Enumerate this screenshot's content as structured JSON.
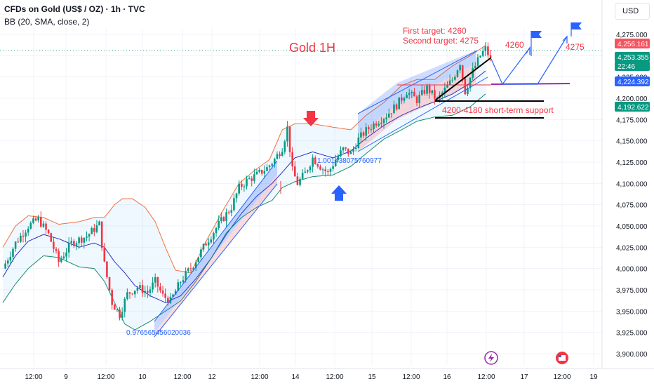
{
  "header": {
    "title": "CFDs on Gold (US$ / OZ) · 1h · TVC",
    "indicator": "BB (20, SMA, close, 2)",
    "currency": "USD"
  },
  "chart_data": {
    "type": "candlestick",
    "title": "Gold 1H",
    "ylim": [
      3890,
      4290
    ],
    "y_ticks": [
      3900,
      3925,
      3950,
      3975,
      4000,
      4025,
      4050,
      4075,
      4100,
      4125,
      4150,
      4175,
      4200,
      4225,
      4250,
      4275
    ],
    "y_tick_labels": [
      "3,900.000",
      "3,925.000",
      "3,950.000",
      "3,975.000",
      "4,000.000",
      "4,025.000",
      "4,050.000",
      "4,075.000",
      "4,100.000",
      "4,125.000",
      "4,150.000",
      "4,175.000",
      "4,200.000",
      "4,225.000",
      "4,250.000",
      "4,275.000"
    ],
    "x_tick_labels": [
      "12:00",
      "9",
      "12:00",
      "10",
      "12:00",
      "12",
      "12:00",
      "14",
      "12:00",
      "15",
      "12:00",
      "16",
      "12:00",
      "17",
      "12:00",
      "19"
    ],
    "price_badges": [
      {
        "value": "4,256.161",
        "color": "#f7525f"
      },
      {
        "value": "4,253.355",
        "color": "#089981"
      },
      {
        "value": "22:46",
        "color": "#089981"
      },
      {
        "value": "4,224.392",
        "color": "#2962ff"
      },
      {
        "value": "4,192.622",
        "color": "#089981"
      }
    ],
    "last_price_line": 4256,
    "support_line": 4224,
    "support_zone": [
      4200,
      4180
    ],
    "annotations": {
      "targets_line1": "First target: 4260",
      "targets_line2": "Second target: 4275",
      "target1": "4260",
      "target2": "4275",
      "support_label": "4200-4180 short-term support",
      "fib_low": "0.976565456020036",
      "fib_mid": "1.001438075760977"
    },
    "close_path": [
      [
        0,
        4000
      ],
      [
        5,
        4030
      ],
      [
        10,
        4050
      ],
      [
        14,
        4058
      ],
      [
        18,
        4040
      ],
      [
        22,
        4008
      ],
      [
        27,
        4030
      ],
      [
        33,
        4038
      ],
      [
        38,
        4052
      ],
      [
        40,
        4005
      ],
      [
        43,
        3960
      ],
      [
        46,
        3946
      ],
      [
        49,
        3970
      ],
      [
        53,
        3978
      ],
      [
        57,
        3972
      ],
      [
        60,
        3985
      ],
      [
        63,
        3968
      ],
      [
        66,
        3962
      ],
      [
        70,
        3985
      ],
      [
        75,
        4005
      ],
      [
        80,
        4030
      ],
      [
        85,
        4052
      ],
      [
        90,
        4072
      ],
      [
        93,
        4095
      ],
      [
        96,
        4103
      ],
      [
        100,
        4110
      ],
      [
        104,
        4118
      ],
      [
        107,
        4128
      ],
      [
        110,
        4142
      ],
      [
        112,
        4165
      ],
      [
        114,
        4115
      ],
      [
        116,
        4100
      ],
      [
        119,
        4112
      ],
      [
        122,
        4130
      ],
      [
        125,
        4120
      ],
      [
        128,
        4112
      ],
      [
        131,
        4128
      ],
      [
        134,
        4140
      ],
      [
        137,
        4135
      ],
      [
        140,
        4152
      ],
      [
        143,
        4162
      ],
      [
        147,
        4172
      ],
      [
        151,
        4180
      ],
      [
        155,
        4192
      ],
      [
        159,
        4208
      ],
      [
        163,
        4198
      ],
      [
        167,
        4212
      ],
      [
        171,
        4198
      ],
      [
        174,
        4210
      ],
      [
        177,
        4222
      ],
      [
        180,
        4242
      ],
      [
        182,
        4208
      ],
      [
        185,
        4232
      ],
      [
        188,
        4250
      ],
      [
        190,
        4258
      ],
      [
        192,
        4246
      ]
    ],
    "bb_upper": [
      [
        0,
        4025
      ],
      [
        5,
        4050
      ],
      [
        10,
        4062
      ],
      [
        16,
        4060
      ],
      [
        22,
        4052
      ],
      [
        30,
        4055
      ],
      [
        36,
        4060
      ],
      [
        40,
        4060
      ],
      [
        44,
        4075
      ],
      [
        47,
        4082
      ],
      [
        51,
        4082
      ],
      [
        56,
        4072
      ],
      [
        60,
        4055
      ],
      [
        64,
        4025
      ],
      [
        68,
        3998
      ],
      [
        74,
        3995
      ],
      [
        80,
        4032
      ],
      [
        87,
        4070
      ],
      [
        93,
        4100
      ],
      [
        99,
        4115
      ],
      [
        105,
        4128
      ],
      [
        110,
        4163
      ],
      [
        115,
        4170
      ],
      [
        122,
        4170
      ],
      [
        130,
        4166
      ],
      [
        137,
        4163
      ],
      [
        143,
        4180
      ],
      [
        150,
        4195
      ],
      [
        157,
        4215
      ],
      [
        163,
        4222
      ],
      [
        170,
        4222
      ],
      [
        177,
        4238
      ],
      [
        184,
        4250
      ],
      [
        190,
        4262
      ]
    ],
    "bb_basis": [
      [
        0,
        3990
      ],
      [
        5,
        4015
      ],
      [
        10,
        4032
      ],
      [
        16,
        4040
      ],
      [
        22,
        4035
      ],
      [
        30,
        4025
      ],
      [
        36,
        4030
      ],
      [
        40,
        4025
      ],
      [
        44,
        4008
      ],
      [
        48,
        3995
      ],
      [
        52,
        3980
      ],
      [
        58,
        3968
      ],
      [
        64,
        3960
      ],
      [
        70,
        3968
      ],
      [
        76,
        3988
      ],
      [
        82,
        4012
      ],
      [
        88,
        4040
      ],
      [
        94,
        4065
      ],
      [
        100,
        4085
      ],
      [
        106,
        4100
      ],
      [
        110,
        4113
      ],
      [
        115,
        4130
      ],
      [
        122,
        4137
      ],
      [
        130,
        4130
      ],
      [
        137,
        4138
      ],
      [
        143,
        4153
      ],
      [
        150,
        4168
      ],
      [
        157,
        4180
      ],
      [
        163,
        4188
      ],
      [
        170,
        4196
      ],
      [
        177,
        4205
      ],
      [
        184,
        4218
      ],
      [
        190,
        4232
      ]
    ],
    "bb_lower": [
      [
        0,
        3960
      ],
      [
        5,
        3982
      ],
      [
        10,
        4000
      ],
      [
        16,
        4015
      ],
      [
        22,
        4013
      ],
      [
        30,
        4002
      ],
      [
        36,
        4000
      ],
      [
        40,
        3985
      ],
      [
        44,
        3960
      ],
      [
        48,
        3935
      ],
      [
        52,
        3928
      ],
      [
        58,
        3938
      ],
      [
        64,
        3950
      ],
      [
        70,
        3962
      ],
      [
        76,
        3985
      ],
      [
        82,
        4012
      ],
      [
        88,
        4042
      ],
      [
        94,
        4060
      ],
      [
        100,
        4072
      ],
      [
        106,
        4080
      ],
      [
        110,
        4095
      ],
      [
        115,
        4102
      ],
      [
        122,
        4108
      ],
      [
        130,
        4110
      ],
      [
        137,
        4120
      ],
      [
        143,
        4135
      ],
      [
        150,
        4152
      ],
      [
        157,
        4163
      ],
      [
        163,
        4173
      ],
      [
        170,
        4178
      ],
      [
        177,
        4180
      ],
      [
        184,
        4190
      ],
      [
        190,
        4205
      ]
    ]
  }
}
